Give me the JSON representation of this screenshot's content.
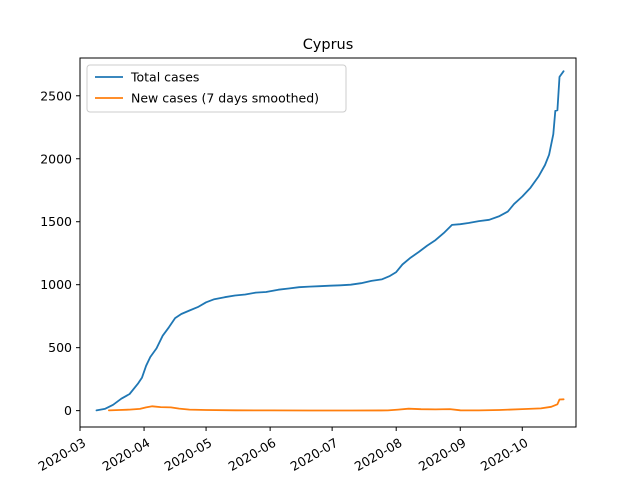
{
  "chart_data": {
    "type": "line",
    "title": "Cyprus",
    "xlabel": "",
    "ylabel": "",
    "xlim": [
      "2020-03-01",
      "2020-10-27"
    ],
    "ylim": [
      -130,
      2800
    ],
    "x_ticks": [
      "2020-03",
      "2020-04",
      "2020-05",
      "2020-06",
      "2020-07",
      "2020-08",
      "2020-09",
      "2020-10"
    ],
    "y_ticks": [
      0,
      500,
      1000,
      1500,
      2000,
      2500
    ],
    "grid": false,
    "legend_position": "top-left",
    "series": [
      {
        "name": "Total cases",
        "color": "#1f77b4",
        "points": [
          [
            "2020-03-09",
            2
          ],
          [
            "2020-03-13",
            14
          ],
          [
            "2020-03-17",
            46
          ],
          [
            "2020-03-21",
            95
          ],
          [
            "2020-03-25",
            132
          ],
          [
            "2020-03-29",
            214
          ],
          [
            "2020-03-31",
            262
          ],
          [
            "2020-04-02",
            356
          ],
          [
            "2020-04-04",
            426
          ],
          [
            "2020-04-07",
            494
          ],
          [
            "2020-04-10",
            595
          ],
          [
            "2020-04-13",
            662
          ],
          [
            "2020-04-16",
            735
          ],
          [
            "2020-04-19",
            767
          ],
          [
            "2020-04-23",
            795
          ],
          [
            "2020-04-27",
            822
          ],
          [
            "2020-05-01",
            860
          ],
          [
            "2020-05-05",
            885
          ],
          [
            "2020-05-10",
            901
          ],
          [
            "2020-05-15",
            914
          ],
          [
            "2020-05-20",
            922
          ],
          [
            "2020-05-25",
            937
          ],
          [
            "2020-05-30",
            942
          ],
          [
            "2020-06-05",
            960
          ],
          [
            "2020-06-10",
            970
          ],
          [
            "2020-06-15",
            980
          ],
          [
            "2020-06-20",
            985
          ],
          [
            "2020-06-25",
            988
          ],
          [
            "2020-06-30",
            992
          ],
          [
            "2020-07-05",
            995
          ],
          [
            "2020-07-10",
            1000
          ],
          [
            "2020-07-15",
            1012
          ],
          [
            "2020-07-20",
            1030
          ],
          [
            "2020-07-25",
            1042
          ],
          [
            "2020-07-29",
            1070
          ],
          [
            "2020-08-01",
            1100
          ],
          [
            "2020-08-04",
            1160
          ],
          [
            "2020-08-08",
            1215
          ],
          [
            "2020-08-12",
            1260
          ],
          [
            "2020-08-16",
            1310
          ],
          [
            "2020-08-20",
            1354
          ],
          [
            "2020-08-24",
            1410
          ],
          [
            "2020-08-28",
            1475
          ],
          [
            "2020-09-01",
            1480
          ],
          [
            "2020-09-05",
            1490
          ],
          [
            "2020-09-10",
            1505
          ],
          [
            "2020-09-15",
            1515
          ],
          [
            "2020-09-20",
            1545
          ],
          [
            "2020-09-24",
            1580
          ],
          [
            "2020-09-27",
            1640
          ],
          [
            "2020-10-01",
            1700
          ],
          [
            "2020-10-05",
            1770
          ],
          [
            "2020-10-09",
            1862
          ],
          [
            "2020-10-12",
            1950
          ],
          [
            "2020-10-14",
            2032
          ],
          [
            "2020-10-16",
            2195
          ],
          [
            "2020-10-17",
            2380
          ],
          [
            "2020-10-18",
            2385
          ],
          [
            "2020-10-19",
            2650
          ],
          [
            "2020-10-21",
            2695
          ]
        ]
      },
      {
        "name": "New cases (7 days smoothed)",
        "color": "#ff7f0e",
        "points": [
          [
            "2020-03-15",
            2
          ],
          [
            "2020-03-20",
            5
          ],
          [
            "2020-03-25",
            8
          ],
          [
            "2020-03-30",
            14
          ],
          [
            "2020-04-02",
            26
          ],
          [
            "2020-04-05",
            34
          ],
          [
            "2020-04-09",
            28
          ],
          [
            "2020-04-14",
            26
          ],
          [
            "2020-04-18",
            16
          ],
          [
            "2020-04-23",
            8
          ],
          [
            "2020-05-01",
            5
          ],
          [
            "2020-05-15",
            3
          ],
          [
            "2020-06-01",
            2
          ],
          [
            "2020-06-20",
            1
          ],
          [
            "2020-07-10",
            1
          ],
          [
            "2020-07-28",
            2
          ],
          [
            "2020-08-02",
            8
          ],
          [
            "2020-08-07",
            15
          ],
          [
            "2020-08-13",
            11
          ],
          [
            "2020-08-20",
            10
          ],
          [
            "2020-08-27",
            12
          ],
          [
            "2020-09-01",
            3
          ],
          [
            "2020-09-10",
            2
          ],
          [
            "2020-09-20",
            5
          ],
          [
            "2020-10-01",
            12
          ],
          [
            "2020-10-10",
            18
          ],
          [
            "2020-10-15",
            30
          ],
          [
            "2020-10-18",
            50
          ],
          [
            "2020-10-19",
            88
          ],
          [
            "2020-10-21",
            90
          ]
        ]
      }
    ]
  }
}
